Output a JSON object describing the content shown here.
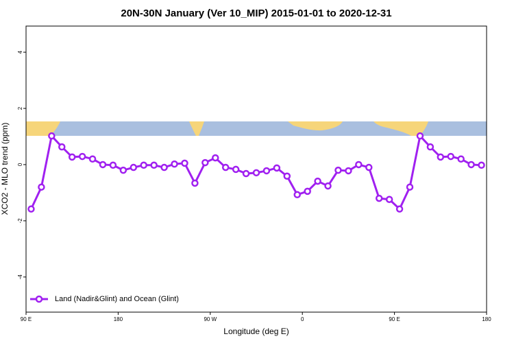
{
  "chart_data": {
    "type": "line",
    "title": "20N-30N January (Ver 10_MIP)   2015-01-01 to 2020-12-31",
    "x_label": "Longitude (deg E)",
    "y_label": "XCO2 - MLO trend (ppm)",
    "xlim": [
      90,
      540
    ],
    "xticks": [
      {
        "value": 90,
        "label": "90 E"
      },
      {
        "value": 180,
        "label": "180"
      },
      {
        "value": 270,
        "label": "90 W"
      },
      {
        "value": 360,
        "label": "0"
      },
      {
        "value": 450,
        "label": "90 E"
      },
      {
        "value": 540,
        "label": "180"
      }
    ],
    "ylim": [
      -5.25,
      4.93
    ],
    "yticks": [
      -4,
      -2,
      0,
      2,
      4
    ],
    "legend_position": "bottom-left",
    "x": [
      95,
      105,
      115,
      125,
      135,
      145,
      155,
      165,
      175,
      185,
      195,
      205,
      215,
      225,
      235,
      245,
      255,
      265,
      275,
      285,
      295,
      305,
      315,
      325,
      335,
      345,
      355,
      365,
      375,
      385,
      395,
      405,
      415,
      425,
      435,
      445,
      455,
      465,
      475,
      485,
      495,
      505,
      515,
      525,
      535
    ],
    "series": [
      {
        "name": "Land (Nadir&Glint) and Ocean (Glint)",
        "color": "#a020f0",
        "values": [
          -1.58,
          -0.8,
          1.02,
          0.63,
          0.27,
          0.29,
          0.2,
          0.0,
          -0.02,
          -0.2,
          -0.1,
          -0.02,
          -0.02,
          -0.1,
          0.02,
          0.05,
          -0.66,
          0.07,
          0.24,
          -0.1,
          -0.17,
          -0.32,
          -0.29,
          -0.22,
          -0.12,
          -0.41,
          -1.07,
          -0.95,
          -0.59,
          -0.76,
          -0.2,
          -0.22,
          0.0,
          -0.1,
          -1.2,
          -1.24,
          -1.58,
          -0.8,
          1.02,
          0.63,
          0.27,
          0.29,
          0.2,
          0.0,
          -0.02
        ]
      }
    ]
  }
}
